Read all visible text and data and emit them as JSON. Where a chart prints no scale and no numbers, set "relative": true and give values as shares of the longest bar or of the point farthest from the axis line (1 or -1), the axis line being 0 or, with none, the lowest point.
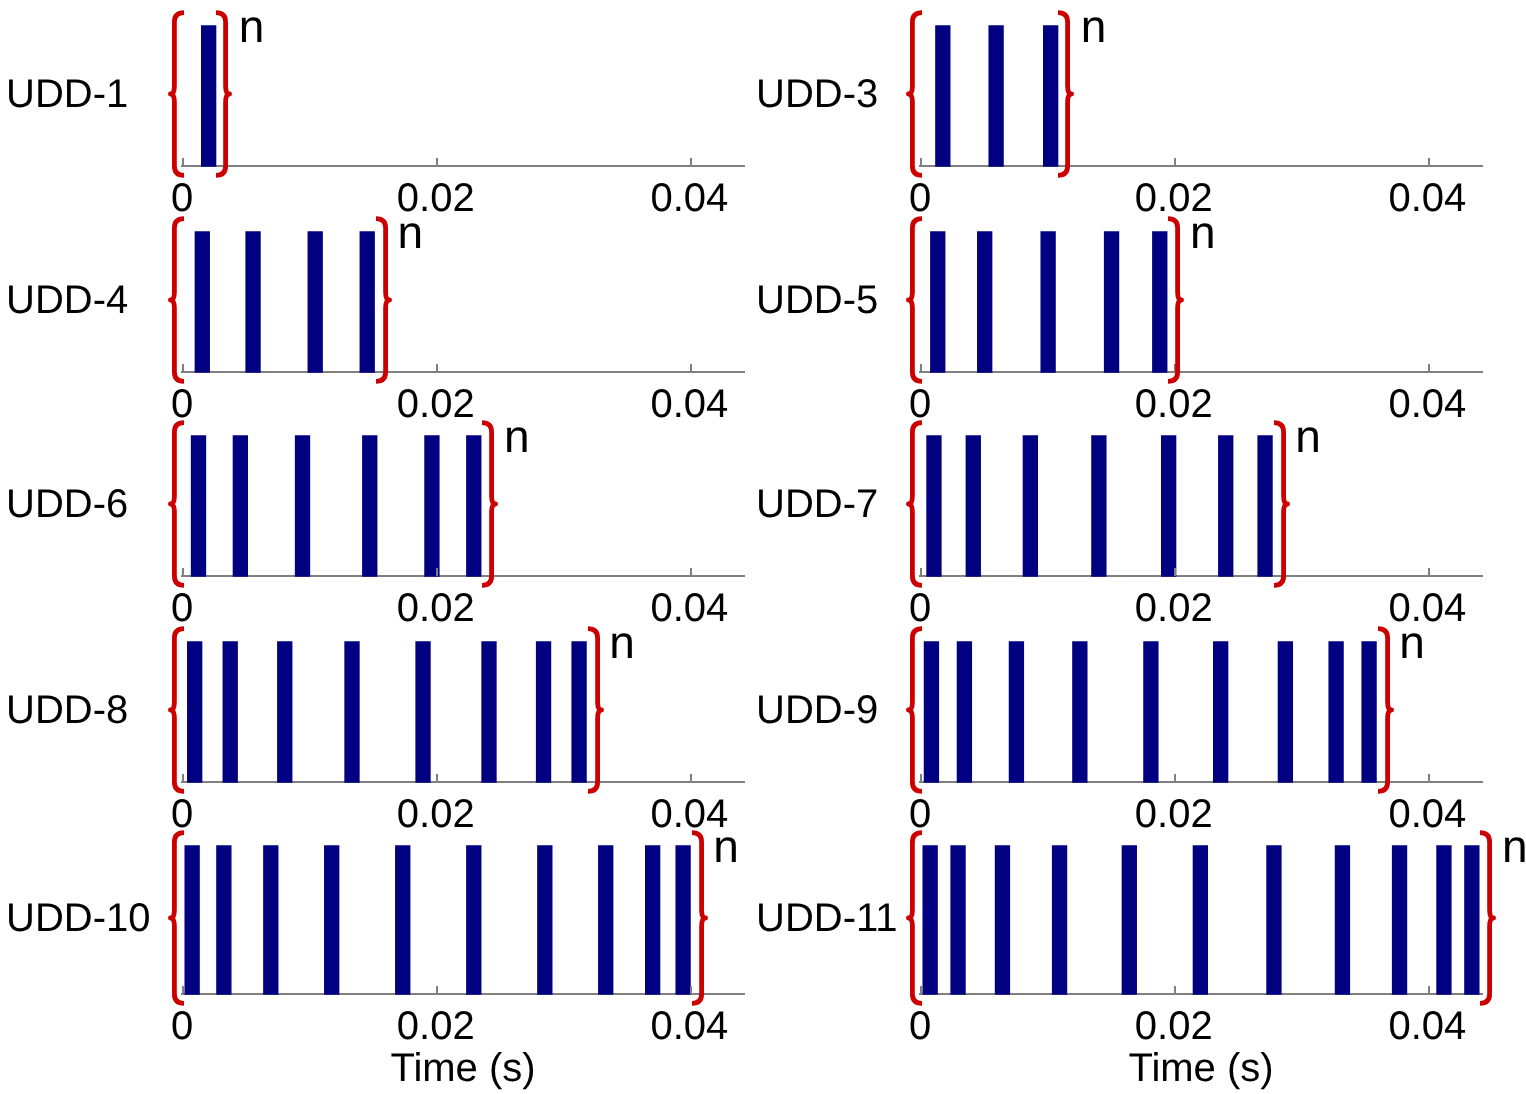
{
  "chart_data": [
    {
      "type": "bar",
      "ylabel": "UDD-1",
      "x": [
        0.0021
      ],
      "values": [
        1
      ],
      "color": "#000080",
      "relative": true,
      "xlim": [
        0,
        0.0443
      ],
      "xticks": [
        0,
        0.02,
        0.04
      ],
      "annotations": [
        "n"
      ]
    },
    {
      "type": "bar",
      "ylabel": "UDD-3",
      "x": [
        0.0018,
        0.006,
        0.0103
      ],
      "values": [
        1,
        1,
        1
      ],
      "color": "#000080",
      "relative": true,
      "xlim": [
        0,
        0.0443
      ],
      "xticks": [
        0,
        0.02,
        0.04
      ],
      "annotations": [
        "n"
      ]
    },
    {
      "type": "bar",
      "ylabel": "UDD-4",
      "x": [
        0.0016,
        0.0056,
        0.0105,
        0.0146
      ],
      "values": [
        1,
        1,
        1,
        1
      ],
      "color": "#000080",
      "relative": true,
      "xlim": [
        0,
        0.0443
      ],
      "xticks": [
        0,
        0.02,
        0.04
      ],
      "annotations": [
        "n"
      ]
    },
    {
      "type": "bar",
      "ylabel": "UDD-5",
      "x": [
        0.0014,
        0.0051,
        0.0101,
        0.0151,
        0.0189
      ],
      "values": [
        1,
        1,
        1,
        1,
        1
      ],
      "color": "#000080",
      "relative": true,
      "xlim": [
        0,
        0.0443
      ],
      "xticks": [
        0,
        0.02,
        0.04
      ],
      "annotations": [
        "n"
      ]
    },
    {
      "type": "bar",
      "ylabel": "UDD-6",
      "x": [
        0.0013,
        0.0046,
        0.0095,
        0.0148,
        0.0197,
        0.023
      ],
      "values": [
        1,
        1,
        1,
        1,
        1,
        1
      ],
      "color": "#000080",
      "relative": true,
      "xlim": [
        0,
        0.0443
      ],
      "xticks": [
        0,
        0.02,
        0.04
      ],
      "annotations": [
        "n"
      ]
    },
    {
      "type": "bar",
      "ylabel": "UDD-7",
      "x": [
        0.0011,
        0.0042,
        0.0087,
        0.0141,
        0.0196,
        0.0241,
        0.0272
      ],
      "values": [
        1,
        1,
        1,
        1,
        1,
        1,
        1
      ],
      "color": "#000080",
      "relative": true,
      "xlim": [
        0,
        0.0443
      ],
      "xticks": [
        0,
        0.02,
        0.04
      ],
      "annotations": [
        "n"
      ]
    },
    {
      "type": "bar",
      "ylabel": "UDD-8",
      "x": [
        0.001,
        0.0038,
        0.0081,
        0.0134,
        0.019,
        0.0242,
        0.0285,
        0.0313
      ],
      "values": [
        1,
        1,
        1,
        1,
        1,
        1,
        1,
        1
      ],
      "color": "#000080",
      "relative": true,
      "xlim": [
        0,
        0.0443
      ],
      "xticks": [
        0,
        0.02,
        0.04
      ],
      "annotations": [
        "n"
      ]
    },
    {
      "type": "bar",
      "ylabel": "UDD-9",
      "x": [
        0.0009,
        0.0035,
        0.0076,
        0.0126,
        0.0182,
        0.0237,
        0.0288,
        0.0328,
        0.0354
      ],
      "values": [
        1,
        1,
        1,
        1,
        1,
        1,
        1,
        1,
        1
      ],
      "color": "#000080",
      "relative": true,
      "xlim": [
        0,
        0.0443
      ],
      "xticks": [
        0,
        0.02,
        0.04
      ],
      "annotations": [
        "n"
      ]
    },
    {
      "type": "bar",
      "ylabel": "UDD-10",
      "xlabel": "Time (s)",
      "x": [
        0.0008,
        0.0033,
        0.007,
        0.0118,
        0.0174,
        0.023,
        0.0286,
        0.0334,
        0.0371,
        0.0395
      ],
      "values": [
        1,
        1,
        1,
        1,
        1,
        1,
        1,
        1,
        1,
        1
      ],
      "color": "#000080",
      "relative": true,
      "xlim": [
        0,
        0.0443
      ],
      "xticks": [
        0,
        0.02,
        0.04
      ],
      "annotations": [
        "n"
      ]
    },
    {
      "type": "bar",
      "ylabel": "UDD-11",
      "xlabel": "Time (s)",
      "x": [
        0.0008,
        0.003,
        0.0065,
        0.011,
        0.0165,
        0.0221,
        0.0279,
        0.0333,
        0.0378,
        0.0413,
        0.0435
      ],
      "values": [
        1,
        1,
        1,
        1,
        1,
        1,
        1,
        1,
        1,
        1,
        1
      ],
      "color": "#000080",
      "relative": true,
      "xlim": [
        0,
        0.0443
      ],
      "xticks": [
        0,
        0.02,
        0.04
      ],
      "annotations": [
        "n"
      ]
    }
  ]
}
